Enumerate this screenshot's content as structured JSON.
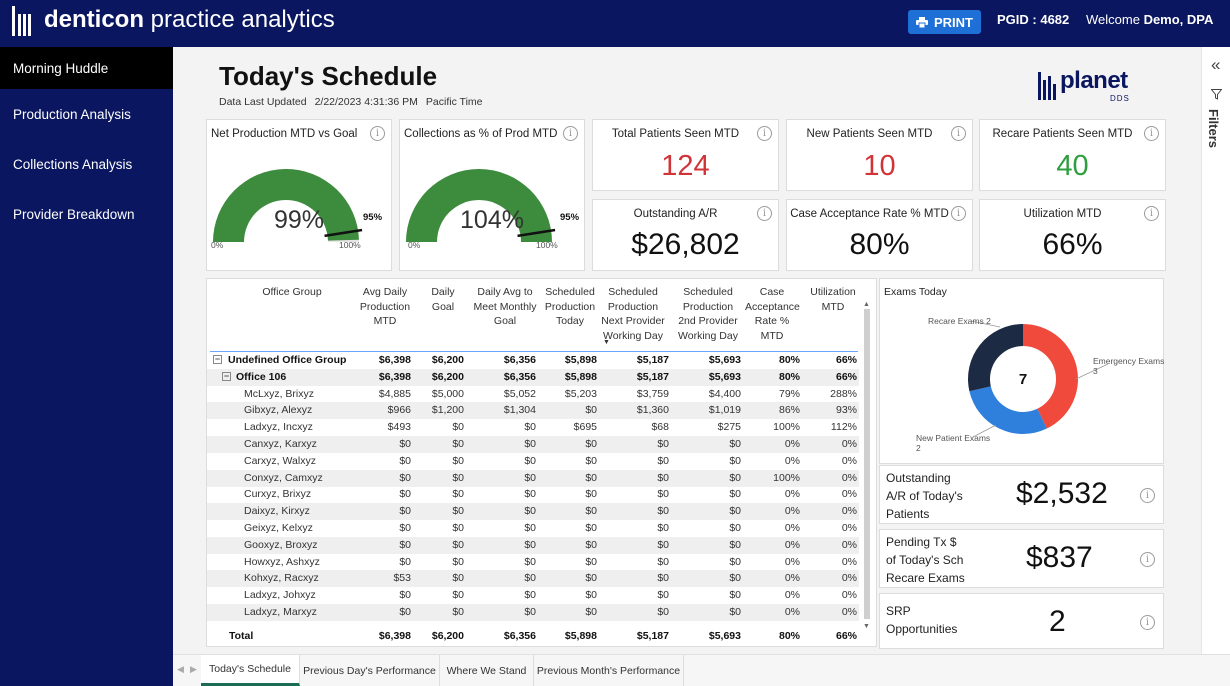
{
  "header": {
    "brand_bold": "denticon",
    "brand_light": " practice analytics",
    "print_label": "PRINT",
    "pgid": "PGID : 4682",
    "welcome_prefix": "Welcome ",
    "welcome_user": "Demo, DPA"
  },
  "sidebar": {
    "items": [
      {
        "label": "Morning Huddle"
      },
      {
        "label": "Production Analysis"
      },
      {
        "label": "Collections Analysis"
      },
      {
        "label": "Provider Breakdown"
      }
    ]
  },
  "page": {
    "title": "Today's Schedule",
    "updated_label": "Data Last Updated",
    "updated_value": "2/22/2023 4:31:36 PM",
    "timezone": "Pacific Time",
    "logo_word": "planet",
    "logo_sub": "DDS"
  },
  "gauges": [
    {
      "title": "Net Production MTD vs Goal",
      "value": "99%",
      "percent": 99,
      "goal": "95%",
      "goal_percent": 95,
      "min": "0%",
      "max": "100%"
    },
    {
      "title": "Collections as % of Prod MTD",
      "value": "104%",
      "percent": 104,
      "goal": "95%",
      "goal_percent": 95,
      "min": "0%",
      "max": "100%"
    }
  ],
  "kpis": {
    "total_patients": {
      "title": "Total Patients Seen MTD",
      "value": "124"
    },
    "new_patients": {
      "title": "New Patients Seen MTD",
      "value": "10"
    },
    "recare_patients": {
      "title": "Recare Patients Seen MTD",
      "value": "40"
    },
    "outstanding_ar": {
      "title": "Outstanding A/R",
      "value": "$26,802"
    },
    "case_acceptance": {
      "title": "Case Acceptance Rate % MTD",
      "value": "80%"
    },
    "utilization": {
      "title": "Utilization MTD",
      "value": "66%"
    }
  },
  "table": {
    "headers": [
      "Office Group",
      "Avg Daily Production MTD",
      "Daily Goal",
      "Daily Avg to Meet Monthly Goal",
      "Scheduled Production Today",
      "Scheduled Production Next Provider Working Day",
      "Scheduled Production 2nd Provider Working Day",
      "Case Acceptance Rate % MTD",
      "Utilization MTD"
    ],
    "rows": [
      {
        "name": "Undefined Office Group",
        "level": 0,
        "vals": [
          "$6,398",
          "$6,200",
          "$6,356",
          "$5,898",
          "$5,187",
          "$5,693",
          "80%",
          "66%"
        ]
      },
      {
        "name": "Office 106",
        "level": 1,
        "vals": [
          "$6,398",
          "$6,200",
          "$6,356",
          "$5,898",
          "$5,187",
          "$5,693",
          "80%",
          "66%"
        ]
      },
      {
        "name": "McLxyz, Brixyz",
        "level": 2,
        "vals": [
          "$4,885",
          "$5,000",
          "$5,052",
          "$5,203",
          "$3,759",
          "$4,400",
          "79%",
          "288%"
        ]
      },
      {
        "name": "Gibxyz, Alexyz",
        "level": 2,
        "vals": [
          "$966",
          "$1,200",
          "$1,304",
          "$0",
          "$1,360",
          "$1,019",
          "86%",
          "93%"
        ]
      },
      {
        "name": "Ladxyz, Incxyz",
        "level": 2,
        "vals": [
          "$493",
          "$0",
          "$0",
          "$695",
          "$68",
          "$275",
          "100%",
          "112%"
        ]
      },
      {
        "name": "Canxyz, Karxyz",
        "level": 2,
        "vals": [
          "$0",
          "$0",
          "$0",
          "$0",
          "$0",
          "$0",
          "0%",
          "0%"
        ]
      },
      {
        "name": "Carxyz, Walxyz",
        "level": 2,
        "vals": [
          "$0",
          "$0",
          "$0",
          "$0",
          "$0",
          "$0",
          "0%",
          "0%"
        ]
      },
      {
        "name": "Conxyz, Camxyz",
        "level": 2,
        "vals": [
          "$0",
          "$0",
          "$0",
          "$0",
          "$0",
          "$0",
          "100%",
          "0%"
        ]
      },
      {
        "name": "Curxyz, Brixyz",
        "level": 2,
        "vals": [
          "$0",
          "$0",
          "$0",
          "$0",
          "$0",
          "$0",
          "0%",
          "0%"
        ]
      },
      {
        "name": "Daixyz, Kirxyz",
        "level": 2,
        "vals": [
          "$0",
          "$0",
          "$0",
          "$0",
          "$0",
          "$0",
          "0%",
          "0%"
        ]
      },
      {
        "name": "Geixyz, Kelxyz",
        "level": 2,
        "vals": [
          "$0",
          "$0",
          "$0",
          "$0",
          "$0",
          "$0",
          "0%",
          "0%"
        ]
      },
      {
        "name": "Gooxyz, Broxyz",
        "level": 2,
        "vals": [
          "$0",
          "$0",
          "$0",
          "$0",
          "$0",
          "$0",
          "0%",
          "0%"
        ]
      },
      {
        "name": "Howxyz, Ashxyz",
        "level": 2,
        "vals": [
          "$0",
          "$0",
          "$0",
          "$0",
          "$0",
          "$0",
          "0%",
          "0%"
        ]
      },
      {
        "name": "Kohxyz, Racxyz",
        "level": 2,
        "vals": [
          "$53",
          "$0",
          "$0",
          "$0",
          "$0",
          "$0",
          "0%",
          "0%"
        ]
      },
      {
        "name": "Ladxyz, Johxyz",
        "level": 2,
        "vals": [
          "$0",
          "$0",
          "$0",
          "$0",
          "$0",
          "$0",
          "0%",
          "0%"
        ]
      },
      {
        "name": "Ladxyz, Marxyz",
        "level": 2,
        "vals": [
          "$0",
          "$0",
          "$0",
          "$0",
          "$0",
          "$0",
          "0%",
          "0%"
        ]
      }
    ],
    "total": {
      "name": "Total",
      "vals": [
        "$6,398",
        "$6,200",
        "$6,356",
        "$5,898",
        "$5,187",
        "$5,693",
        "80%",
        "66%"
      ]
    }
  },
  "exams": {
    "title": "Exams Today",
    "center": "7",
    "labels": {
      "recare": "Recare Exams 2",
      "emergency_name": "Emergency Exams",
      "emergency_value": "3",
      "new_name": "New Patient Exams",
      "new_value": "2"
    },
    "chart_data": {
      "type": "pie",
      "categories": [
        "Recare Exams",
        "Emergency Exams",
        "New Patient Exams"
      ],
      "values": [
        2,
        3,
        2
      ],
      "colors": [
        "#1c2a44",
        "#ef4a3c",
        "#2f7fdc"
      ]
    }
  },
  "side_cards": {
    "outstanding": {
      "lines": [
        "Outstanding",
        "A/R of Today's",
        "Patients"
      ],
      "value": "$2,532"
    },
    "pending": {
      "lines": [
        "Pending Tx $",
        "of Today's Sch",
        "Recare Exams"
      ],
      "value": "$837"
    },
    "srp": {
      "lines": [
        "SRP",
        "Opportunities"
      ],
      "value": "2"
    }
  },
  "filters": {
    "label": "Filters"
  },
  "tabs": [
    {
      "label": "Today's Schedule",
      "active": true
    },
    {
      "label": "Previous Day's Performance",
      "active": false
    },
    {
      "label": "Where We Stand",
      "active": false
    },
    {
      "label": "Previous Month's Performance",
      "active": false
    }
  ],
  "colors": {
    "nav_bg": "#0a1660",
    "gauge_fill": "#3d8b3d",
    "print_button": "#1e6fd6",
    "kpi_red": "#d13438",
    "kpi_green": "#2e9e3e",
    "active_tab": "#1c6b55"
  }
}
